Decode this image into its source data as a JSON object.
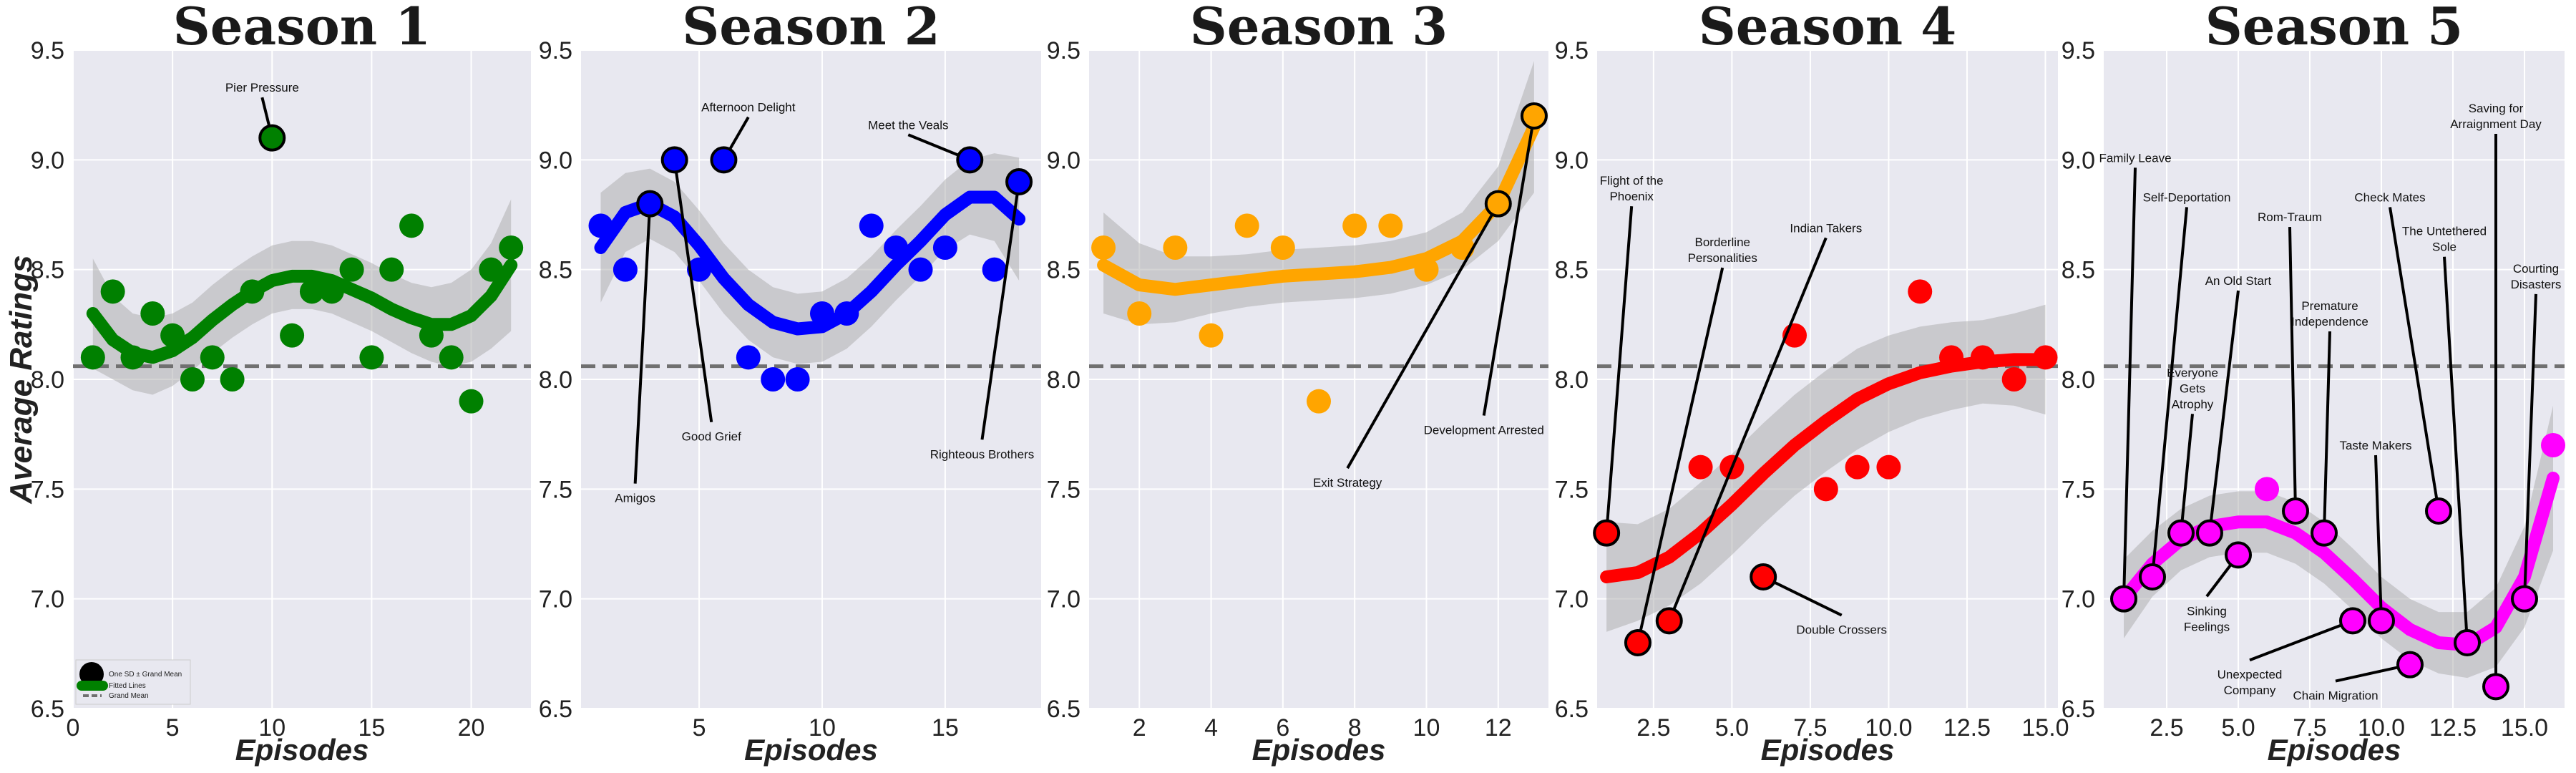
{
  "figure": {
    "ylabel": "Average Ratings",
    "xlabel": "Episodes",
    "grand_mean": 8.06,
    "legend": {
      "sd_label": "One SD ± Grand Mean",
      "fit_label": "Fitted Lines",
      "mean_label": "Grand Mean"
    }
  },
  "chart_data": [
    {
      "type": "scatter",
      "title": "Season 1",
      "color": "#008000",
      "xlim": [
        0,
        23
      ],
      "ylim": [
        6.5,
        9.5
      ],
      "xticks": [
        0,
        5,
        10,
        15,
        20
      ],
      "yticks": [
        6.5,
        7.0,
        7.5,
        8.0,
        8.5,
        9.0,
        9.5
      ],
      "x": [
        1,
        2,
        3,
        4,
        5,
        6,
        7,
        8,
        9,
        10,
        11,
        12,
        13,
        14,
        15,
        16,
        17,
        18,
        19,
        20,
        21,
        22
      ],
      "y": [
        8.1,
        8.4,
        8.1,
        8.3,
        8.2,
        8.0,
        8.1,
        8.0,
        8.4,
        9.1,
        8.2,
        8.4,
        8.4,
        8.5,
        8.1,
        8.5,
        8.7,
        8.2,
        8.1,
        7.9,
        8.5,
        8.6
      ],
      "fit_x": [
        1,
        2,
        3,
        4,
        5,
        6,
        7,
        8,
        9,
        10,
        11,
        12,
        13,
        14,
        15,
        16,
        17,
        18,
        19,
        20,
        21,
        22
      ],
      "fit_y": [
        8.3,
        8.18,
        8.12,
        8.1,
        8.13,
        8.19,
        8.27,
        8.34,
        8.4,
        8.45,
        8.47,
        8.47,
        8.45,
        8.41,
        8.37,
        8.32,
        8.28,
        8.25,
        8.25,
        8.29,
        8.38,
        8.52
      ],
      "ci_lo": [
        8.05,
        8.0,
        7.95,
        7.93,
        7.97,
        8.04,
        8.12,
        8.19,
        8.25,
        8.3,
        8.32,
        8.32,
        8.3,
        8.26,
        8.22,
        8.17,
        8.12,
        8.08,
        8.06,
        8.08,
        8.14,
        8.22
      ],
      "ci_hi": [
        8.55,
        8.38,
        8.3,
        8.28,
        8.3,
        8.35,
        8.43,
        8.5,
        8.56,
        8.61,
        8.63,
        8.63,
        8.61,
        8.57,
        8.53,
        8.48,
        8.44,
        8.42,
        8.44,
        8.5,
        8.62,
        8.82
      ],
      "annotations": [
        {
          "episode": 10,
          "rating": 9.1,
          "label": "Pier Pressure",
          "tx": 9.5,
          "ty": 9.33
        }
      ]
    },
    {
      "type": "scatter",
      "title": "Season 2",
      "color": "#0000ff",
      "xlim": [
        0.2,
        18.9
      ],
      "ylim": [
        6.5,
        9.5
      ],
      "xticks": [
        5,
        10,
        15
      ],
      "yticks": [
        6.5,
        7.0,
        7.5,
        8.0,
        8.5,
        9.0,
        9.5
      ],
      "x": [
        1,
        2,
        3,
        4,
        5,
        6,
        7,
        8,
        9,
        10,
        11,
        12,
        13,
        14,
        15,
        16,
        17,
        18
      ],
      "y": [
        8.7,
        8.5,
        8.8,
        9.0,
        8.5,
        9.0,
        8.1,
        8.0,
        8.0,
        8.3,
        8.3,
        8.7,
        8.6,
        8.5,
        8.6,
        9.0,
        8.5,
        8.9
      ],
      "fit_x": [
        1,
        2,
        3,
        4,
        5,
        6,
        7,
        8,
        9,
        10,
        11,
        12,
        13,
        14,
        15,
        16,
        17,
        18
      ],
      "fit_y": [
        8.6,
        8.76,
        8.8,
        8.74,
        8.61,
        8.46,
        8.34,
        8.26,
        8.23,
        8.24,
        8.3,
        8.4,
        8.52,
        8.63,
        8.75,
        8.83,
        8.83,
        8.73
      ],
      "ci_lo": [
        8.35,
        8.58,
        8.64,
        8.58,
        8.45,
        8.3,
        8.18,
        8.1,
        8.07,
        8.08,
        8.14,
        8.24,
        8.36,
        8.47,
        8.59,
        8.66,
        8.63,
        8.45
      ],
      "ci_hi": [
        8.85,
        8.94,
        8.96,
        8.9,
        8.77,
        8.62,
        8.5,
        8.42,
        8.39,
        8.4,
        8.46,
        8.56,
        8.68,
        8.79,
        8.91,
        9.0,
        9.03,
        9.01
      ],
      "annotations": [
        {
          "episode": 6,
          "rating": 9.0,
          "label": "Afternoon Delight",
          "tx": 7.0,
          "ty": 9.24
        },
        {
          "episode": 16,
          "rating": 9.0,
          "label": "Meet the Veals",
          "tx": 13.5,
          "ty": 9.16
        },
        {
          "episode": 3,
          "rating": 8.8,
          "label": "Amigos",
          "tx": 2.4,
          "ty": 7.46
        },
        {
          "episode": 4,
          "rating": 9.0,
          "label": "Good Grief",
          "tx": 5.5,
          "ty": 7.74
        },
        {
          "episode": 18,
          "rating": 8.9,
          "label": "Righteous Brothers",
          "tx": 16.5,
          "ty": 7.66
        }
      ]
    },
    {
      "type": "scatter",
      "title": "Season 3",
      "color": "#ffa500",
      "xlim": [
        0.6,
        13.4
      ],
      "ylim": [
        6.5,
        9.5
      ],
      "xticks": [
        2,
        4,
        6,
        8,
        10,
        12
      ],
      "yticks": [
        6.5,
        7.0,
        7.5,
        8.0,
        8.5,
        9.0,
        9.5
      ],
      "x": [
        1,
        2,
        3,
        4,
        5,
        6,
        7,
        8,
        9,
        10,
        11,
        12,
        13
      ],
      "y": [
        8.6,
        8.3,
        8.6,
        8.2,
        8.7,
        8.6,
        7.9,
        8.7,
        8.7,
        8.5,
        8.6,
        8.8,
        9.2
      ],
      "fit_x": [
        1,
        2,
        3,
        4,
        5,
        6,
        7,
        8,
        9,
        10,
        11,
        12,
        13
      ],
      "fit_y": [
        8.52,
        8.43,
        8.41,
        8.43,
        8.45,
        8.47,
        8.48,
        8.49,
        8.51,
        8.55,
        8.63,
        8.8,
        9.15
      ],
      "ci_lo": [
        8.3,
        8.25,
        8.26,
        8.3,
        8.33,
        8.35,
        8.36,
        8.37,
        8.39,
        8.43,
        8.5,
        8.63,
        8.85
      ],
      "ci_hi": [
        8.76,
        8.62,
        8.56,
        8.56,
        8.57,
        8.59,
        8.6,
        8.61,
        8.63,
        8.67,
        8.76,
        8.97,
        9.45
      ],
      "annotations": [
        {
          "episode": 12,
          "rating": 8.8,
          "label": "Exit Strategy",
          "tx": 7.8,
          "ty": 7.53
        },
        {
          "episode": 13,
          "rating": 9.2,
          "label": "Development Arrested",
          "tx": 11.6,
          "ty": 7.77
        }
      ]
    },
    {
      "type": "scatter",
      "title": "Season 4",
      "color": "#ff0000",
      "xlim": [
        0.7,
        15.4
      ],
      "ylim": [
        6.5,
        9.5
      ],
      "xticks": [
        2.5,
        5.0,
        7.5,
        10.0,
        12.5,
        15.0
      ],
      "yticks": [
        6.5,
        7.0,
        7.5,
        8.0,
        8.5,
        9.0,
        9.5
      ],
      "x": [
        1,
        2,
        3,
        4,
        5,
        6,
        7,
        8,
        9,
        10,
        11,
        12,
        13,
        14,
        15
      ],
      "y": [
        7.3,
        6.8,
        6.9,
        7.6,
        7.6,
        7.1,
        8.2,
        7.5,
        7.6,
        7.6,
        8.4,
        8.1,
        8.1,
        8.0,
        8.1
      ],
      "fit_x": [
        1,
        2,
        3,
        4,
        5,
        6,
        7,
        8,
        9,
        10,
        11,
        12,
        13,
        14,
        15
      ],
      "fit_y": [
        7.1,
        7.12,
        7.19,
        7.3,
        7.43,
        7.57,
        7.7,
        7.81,
        7.91,
        7.98,
        8.03,
        8.06,
        8.08,
        8.09,
        8.09
      ],
      "ci_lo": [
        6.85,
        6.9,
        6.97,
        7.07,
        7.2,
        7.34,
        7.47,
        7.58,
        7.68,
        7.76,
        7.82,
        7.86,
        7.89,
        7.88,
        7.84
      ],
      "ci_hi": [
        7.35,
        7.34,
        7.41,
        7.53,
        7.66,
        7.8,
        7.93,
        8.04,
        8.14,
        8.2,
        8.24,
        8.26,
        8.27,
        8.3,
        8.34
      ],
      "annotations": [
        {
          "episode": 1,
          "rating": 7.3,
          "label": "Flight of the\nPhoenix",
          "tx": 1.8,
          "ty": 8.87
        },
        {
          "episode": 2,
          "rating": 6.8,
          "label": "Borderline\nPersonalities",
          "tx": 4.7,
          "ty": 8.59
        },
        {
          "episode": 3,
          "rating": 6.9,
          "label": "Indian Takers",
          "tx": 8.0,
          "ty": 8.69
        },
        {
          "episode": 6,
          "rating": 7.1,
          "label": "Double Crossers",
          "tx": 8.5,
          "ty": 6.86
        }
      ]
    },
    {
      "type": "scatter",
      "title": "Season 5",
      "color": "#ff00ff",
      "xlim": [
        0.3,
        16.4
      ],
      "ylim": [
        6.5,
        9.5
      ],
      "xticks": [
        2.5,
        5.0,
        7.5,
        10.0,
        12.5,
        15.0
      ],
      "yticks": [
        6.5,
        7.0,
        7.5,
        8.0,
        8.5,
        9.0,
        9.5
      ],
      "x": [
        1,
        2,
        3,
        4,
        5,
        6,
        7,
        8,
        9,
        10,
        11,
        12,
        13,
        14,
        15,
        16
      ],
      "y": [
        7.0,
        7.1,
        7.3,
        7.3,
        7.2,
        7.5,
        7.4,
        7.3,
        6.9,
        6.9,
        6.7,
        7.4,
        6.8,
        6.6,
        7.0,
        7.7
      ],
      "fit_x": [
        1,
        2,
        3,
        4,
        5,
        6,
        7,
        8,
        9,
        10,
        11,
        12,
        13,
        14,
        15,
        16
      ],
      "fit_y": [
        7.0,
        7.16,
        7.27,
        7.33,
        7.35,
        7.35,
        7.3,
        7.21,
        7.09,
        6.96,
        6.86,
        6.8,
        6.79,
        6.87,
        7.1,
        7.55
      ],
      "ci_lo": [
        6.82,
        7.01,
        7.13,
        7.19,
        7.21,
        7.21,
        7.16,
        7.07,
        6.95,
        6.82,
        6.72,
        6.66,
        6.64,
        6.69,
        6.87,
        7.22
      ],
      "ci_hi": [
        7.18,
        7.31,
        7.41,
        7.47,
        7.49,
        7.49,
        7.44,
        7.35,
        7.23,
        7.1,
        7.0,
        6.94,
        6.94,
        7.05,
        7.33,
        7.88
      ],
      "annotations": [
        {
          "episode": 1,
          "rating": 7.0,
          "label": "Family Leave",
          "tx": 1.4,
          "ty": 9.01
        },
        {
          "episode": 2,
          "rating": 7.1,
          "label": "Self-Deportation",
          "tx": 3.2,
          "ty": 8.83
        },
        {
          "episode": 3,
          "rating": 7.3,
          "label": "Everyone\nGets\nAtrophy",
          "tx": 3.4,
          "ty": 7.96
        },
        {
          "episode": 4,
          "rating": 7.3,
          "label": "An Old Start",
          "tx": 5.0,
          "ty": 8.45
        },
        {
          "episode": 5,
          "rating": 7.2,
          "label": "Sinking\nFeelings",
          "tx": 3.9,
          "ty": 6.91
        },
        {
          "episode": 7,
          "rating": 7.4,
          "label": "Rom-Traum",
          "tx": 6.8,
          "ty": 8.74
        },
        {
          "episode": 8,
          "rating": 7.3,
          "label": "Premature\nIndependence",
          "tx": 8.2,
          "ty": 8.3
        },
        {
          "episode": 9,
          "rating": 6.9,
          "label": "Unexpected\nCompany",
          "tx": 5.4,
          "ty": 6.62
        },
        {
          "episode": 10,
          "rating": 6.9,
          "label": "Taste Makers",
          "tx": 9.8,
          "ty": 7.7
        },
        {
          "episode": 11,
          "rating": 6.7,
          "label": "Chain Migration",
          "tx": 8.4,
          "ty": 6.56
        },
        {
          "episode": 12,
          "rating": 7.4,
          "label": "Check Mates",
          "tx": 10.3,
          "ty": 8.83
        },
        {
          "episode": 13,
          "rating": 6.8,
          "label": "The Untethered\nSole",
          "tx": 12.2,
          "ty": 8.64
        },
        {
          "episode": 14,
          "rating": 6.6,
          "label": "Saving for\nArraignment Day",
          "tx": 14.0,
          "ty": 9.2
        },
        {
          "episode": 15,
          "rating": 7.0,
          "label": "Courting\nDisasters",
          "tx": 15.4,
          "ty": 8.47
        }
      ]
    }
  ]
}
